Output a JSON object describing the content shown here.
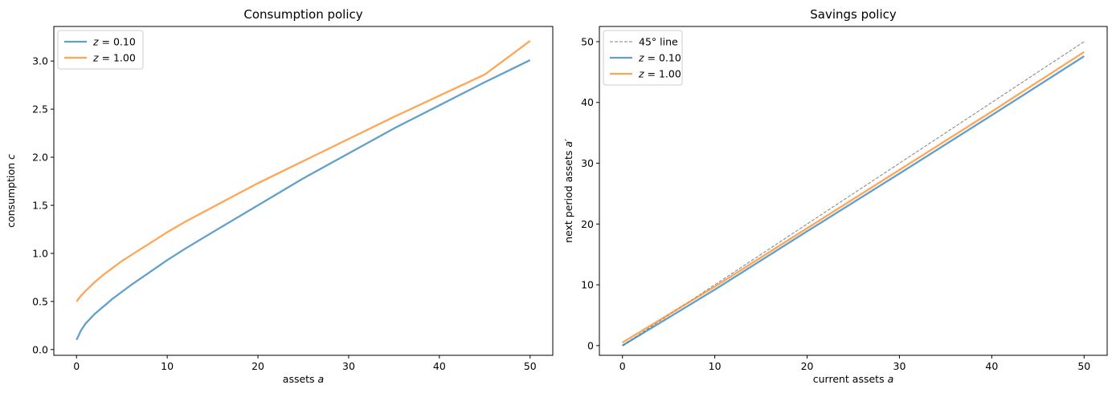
{
  "chart_data": [
    {
      "type": "line",
      "title": "Consumption policy",
      "xlabel": "assets a",
      "xlabel_parts": [
        "assets ",
        "a"
      ],
      "ylabel": "consumption c",
      "ylabel_parts": [
        "consumption ",
        "c"
      ],
      "xlim": [
        -2.5,
        52.5
      ],
      "ylim": [
        -0.06,
        3.36
      ],
      "xticks": [
        0,
        10,
        20,
        30,
        40,
        50
      ],
      "xtick_labels": [
        "0",
        "10",
        "20",
        "30",
        "40",
        "50"
      ],
      "yticks": [
        0.0,
        0.5,
        1.0,
        1.5,
        2.0,
        2.5,
        3.0
      ],
      "ytick_labels": [
        "0.0",
        "0.5",
        "1.0",
        "1.5",
        "2.0",
        "2.5",
        "3.0"
      ],
      "grid": false,
      "legend": "top-left",
      "series": [
        {
          "name": "z = 0.10",
          "color": "#1f77b4",
          "opacity": 0.7,
          "x": [
            0,
            0.5,
            1,
            2,
            3,
            4,
            5,
            6,
            8,
            10,
            12,
            15,
            20,
            25,
            30,
            35,
            40,
            45,
            50
          ],
          "y": [
            0.1,
            0.2,
            0.27,
            0.37,
            0.45,
            0.53,
            0.6,
            0.67,
            0.8,
            0.93,
            1.05,
            1.22,
            1.5,
            1.78,
            2.04,
            2.3,
            2.54,
            2.78,
            3.01
          ]
        },
        {
          "name": "z = 1.00",
          "color": "#ff7f0e",
          "opacity": 0.7,
          "x": [
            0,
            0.5,
            1,
            2,
            3,
            4,
            5,
            6,
            8,
            10,
            12,
            15,
            20,
            25,
            30,
            35,
            40,
            45,
            50
          ],
          "y": [
            0.5,
            0.56,
            0.61,
            0.7,
            0.78,
            0.85,
            0.92,
            0.98,
            1.1,
            1.22,
            1.33,
            1.48,
            1.73,
            1.96,
            2.19,
            2.42,
            2.64,
            2.86,
            3.21
          ]
        }
      ]
    },
    {
      "type": "line",
      "title": "Savings policy",
      "xlabel": "current assets a",
      "xlabel_parts": [
        "current assets ",
        "a"
      ],
      "ylabel": "next period assets a′",
      "ylabel_parts": [
        "next period assets ",
        "a′"
      ],
      "xlim": [
        -2.5,
        52.5
      ],
      "ylim": [
        -1.6,
        52.5
      ],
      "xticks": [
        0,
        10,
        20,
        30,
        40,
        50
      ],
      "xtick_labels": [
        "0",
        "10",
        "20",
        "30",
        "40",
        "50"
      ],
      "yticks": [
        0,
        10,
        20,
        30,
        40,
        50
      ],
      "ytick_labels": [
        "0",
        "10",
        "20",
        "30",
        "40",
        "50"
      ],
      "grid": false,
      "legend": "top-left",
      "series": [
        {
          "name": "45° line",
          "color": "#808080",
          "dashed": true,
          "opacity": 1.0,
          "x": [
            0,
            50
          ],
          "y": [
            0,
            50
          ]
        },
        {
          "name": "z = 0.10",
          "color": "#1f77b4",
          "opacity": 0.7,
          "x": [
            0,
            5,
            10,
            20,
            30,
            40,
            50
          ],
          "y": [
            0.0,
            4.6,
            9.2,
            18.8,
            28.3,
            37.9,
            47.6
          ]
        },
        {
          "name": "z = 1.00",
          "color": "#ff7f0e",
          "opacity": 0.7,
          "x": [
            0,
            5,
            10,
            20,
            30,
            40,
            50
          ],
          "y": [
            0.5,
            5.1,
            9.7,
            19.3,
            28.9,
            38.5,
            48.3
          ]
        }
      ]
    }
  ]
}
